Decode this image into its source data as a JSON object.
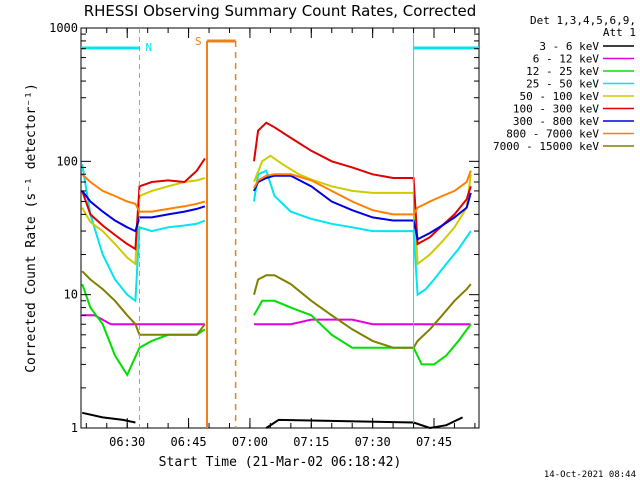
{
  "chart_data": {
    "type": "line",
    "title": "RHESSI Observing Summary Count Rates, Corrected",
    "xlabel": "Start Time (21-Mar-02 06:18:42)",
    "ylabel": "Corrected Count Rate (s⁻¹ detector⁻¹)",
    "y_scale": "log",
    "ylim": [
      1,
      1000
    ],
    "xlim": [
      "06:18:42",
      "07:56:00"
    ],
    "x_tick_labels": [
      "06:30",
      "06:45",
      "07:00",
      "07:15",
      "07:30",
      "07:45"
    ],
    "y_tick_labels": [
      "1",
      "10",
      "100",
      "1000"
    ],
    "legend_title": [
      "Det 1,3,4,5,6,9,",
      "Att 1"
    ],
    "legend_position": "right",
    "timestamp": "14-Oct-2021 08:44",
    "flag_labels": [
      {
        "label": "N",
        "start": "06:33:00",
        "end": "07:40:00",
        "color": "#00e5ee"
      },
      {
        "label": "S",
        "start": "06:49:30",
        "end": "06:56:30",
        "color": "#ee7f1a"
      }
    ],
    "gaps": [
      [
        "06:33:00",
        "06:49:30"
      ],
      [
        "06:49:30",
        "06:56:30"
      ],
      [
        "06:56:30",
        "07:40:00"
      ]
    ],
    "series": [
      {
        "name": "3 - 6 keV",
        "color": "#000000",
        "x": [
          "06:19",
          "06:24",
          "06:29",
          "06:32",
          "07:04",
          "07:07",
          "07:40",
          "07:44",
          "07:48",
          "07:52"
        ],
        "y": [
          1.3,
          1.2,
          1.15,
          1.1,
          1.0,
          1.15,
          1.1,
          1.0,
          1.05,
          1.2
        ]
      },
      {
        "name": "6 - 12 keV",
        "color": "#e000e0",
        "x": [
          "06:19",
          "06:22",
          "06:26",
          "06:30",
          "06:33",
          "06:36",
          "06:40",
          "06:44",
          "06:47",
          "06:49",
          "07:01",
          "07:03",
          "07:05",
          "07:10",
          "07:15",
          "07:20",
          "07:25",
          "07:30",
          "07:35",
          "07:40",
          "07:42",
          "07:45",
          "07:48",
          "07:51",
          "07:54"
        ],
        "y": [
          7,
          7,
          6,
          6,
          6,
          6,
          6,
          6,
          6,
          6,
          6,
          6,
          6,
          6,
          6.5,
          6.5,
          6.5,
          6,
          6,
          6,
          6,
          6,
          6,
          6,
          6
        ]
      },
      {
        "name": "12 - 25 keV",
        "color": "#00e000",
        "x": [
          "06:19",
          "06:21",
          "06:24",
          "06:27",
          "06:30",
          "06:33",
          "06:36",
          "06:40",
          "06:44",
          "06:47",
          "06:49",
          "07:01",
          "07:03",
          "07:06",
          "07:10",
          "07:15",
          "07:20",
          "07:25",
          "07:30",
          "07:35",
          "07:40",
          "07:42",
          "07:45",
          "07:48",
          "07:51",
          "07:54"
        ],
        "y": [
          12,
          8,
          6,
          3.5,
          2.5,
          4,
          4.5,
          5,
          5,
          5,
          5.5,
          7,
          9,
          9,
          8,
          7,
          5,
          4,
          4,
          4,
          4,
          3,
          3,
          3.5,
          4.5,
          6
        ]
      },
      {
        "name": "25 - 50 keV",
        "color": "#00e5ee",
        "x": [
          "06:19",
          "06:21",
          "06:24",
          "06:27",
          "06:30",
          "06:32",
          "06:33",
          "06:36",
          "06:40",
          "06:44",
          "06:47",
          "06:49",
          "07:01",
          "07:02",
          "07:04",
          "07:06",
          "07:10",
          "07:15",
          "07:20",
          "07:25",
          "07:30",
          "07:35",
          "07:40",
          "07:41",
          "07:43",
          "07:45",
          "07:48",
          "07:51",
          "07:54"
        ],
        "y": [
          95,
          40,
          20,
          13,
          10,
          9,
          32,
          30,
          32,
          33,
          34,
          36,
          50,
          80,
          85,
          55,
          42,
          37,
          34,
          32,
          30,
          30,
          30,
          10,
          11,
          13,
          17,
          22,
          30
        ]
      },
      {
        "name": "50 - 100 keV",
        "color": "#cccc00",
        "x": [
          "06:19",
          "06:21",
          "06:24",
          "06:27",
          "06:30",
          "06:32",
          "06:33",
          "06:36",
          "06:40",
          "06:44",
          "06:47",
          "06:49",
          "07:01",
          "07:03",
          "07:05",
          "07:08",
          "07:12",
          "07:15",
          "07:20",
          "07:25",
          "07:30",
          "07:35",
          "07:40",
          "07:41",
          "07:44",
          "07:47",
          "07:50",
          "07:53",
          "07:54"
        ],
        "y": [
          45,
          35,
          30,
          24,
          19,
          17,
          55,
          60,
          65,
          70,
          72,
          75,
          70,
          100,
          110,
          95,
          80,
          73,
          65,
          60,
          58,
          58,
          58,
          17,
          20,
          25,
          32,
          45,
          80
        ]
      },
      {
        "name": "100 - 300 keV",
        "color": "#e00000",
        "x": [
          "06:19",
          "06:21",
          "06:24",
          "06:27",
          "06:30",
          "06:32",
          "06:33",
          "06:36",
          "06:40",
          "06:44",
          "06:47",
          "06:49",
          "07:01",
          "07:02",
          "07:04",
          "07:06",
          "07:10",
          "07:15",
          "07:20",
          "07:25",
          "07:30",
          "07:35",
          "07:40",
          "07:41",
          "07:44",
          "07:47",
          "07:50",
          "07:53",
          "07:54"
        ],
        "y": [
          60,
          40,
          33,
          28,
          24,
          22,
          65,
          70,
          72,
          70,
          85,
          105,
          100,
          170,
          195,
          180,
          150,
          120,
          100,
          90,
          80,
          75,
          75,
          24,
          27,
          33,
          40,
          52,
          65
        ]
      },
      {
        "name": "300 - 800 keV",
        "color": "#0000e0",
        "x": [
          "06:19",
          "06:21",
          "06:24",
          "06:27",
          "06:30",
          "06:32",
          "06:33",
          "06:36",
          "06:40",
          "06:44",
          "06:47",
          "06:49",
          "07:01",
          "07:02",
          "07:04",
          "07:06",
          "07:10",
          "07:15",
          "07:20",
          "07:25",
          "07:30",
          "07:35",
          "07:40",
          "07:41",
          "07:44",
          "07:47",
          "07:50",
          "07:53",
          "07:54"
        ],
        "y": [
          60,
          50,
          42,
          36,
          32,
          30,
          38,
          38,
          40,
          42,
          44,
          46,
          60,
          70,
          75,
          78,
          78,
          65,
          50,
          43,
          38,
          36,
          36,
          26,
          29,
          33,
          38,
          45,
          58
        ]
      },
      {
        "name": "800 - 7000 keV",
        "color": "#ff8000",
        "x": [
          "06:19",
          "06:21",
          "06:24",
          "06:27",
          "06:30",
          "06:32",
          "06:33",
          "06:36",
          "06:40",
          "06:44",
          "06:47",
          "06:49",
          "07:01",
          "07:02",
          "07:04",
          "07:06",
          "07:10",
          "07:15",
          "07:20",
          "07:25",
          "07:30",
          "07:35",
          "07:40",
          "07:41",
          "07:44",
          "07:47",
          "07:50",
          "07:53",
          "07:54"
        ],
        "y": [
          80,
          70,
          60,
          55,
          50,
          48,
          42,
          42,
          44,
          46,
          48,
          50,
          63,
          72,
          78,
          80,
          80,
          72,
          60,
          50,
          43,
          40,
          40,
          45,
          50,
          55,
          60,
          70,
          85
        ]
      },
      {
        "name": "7000 - 15000 keV",
        "color": "#808000",
        "x": [
          "06:19",
          "06:21",
          "06:24",
          "06:27",
          "06:30",
          "06:32",
          "06:33",
          "06:36",
          "06:40",
          "06:44",
          "06:47",
          "06:49",
          "07:01",
          "07:02",
          "07:04",
          "07:06",
          "07:10",
          "07:15",
          "07:20",
          "07:25",
          "07:30",
          "07:35",
          "07:40",
          "07:41",
          "07:44",
          "07:47",
          "07:50",
          "07:53",
          "07:54"
        ],
        "y": [
          15,
          13,
          11,
          9,
          7,
          6,
          5,
          5,
          5,
          5,
          5,
          6,
          10,
          13,
          14,
          14,
          12,
          9,
          7,
          5.5,
          4.5,
          4,
          4,
          4.5,
          5.5,
          7,
          9,
          11,
          12
        ]
      }
    ]
  }
}
